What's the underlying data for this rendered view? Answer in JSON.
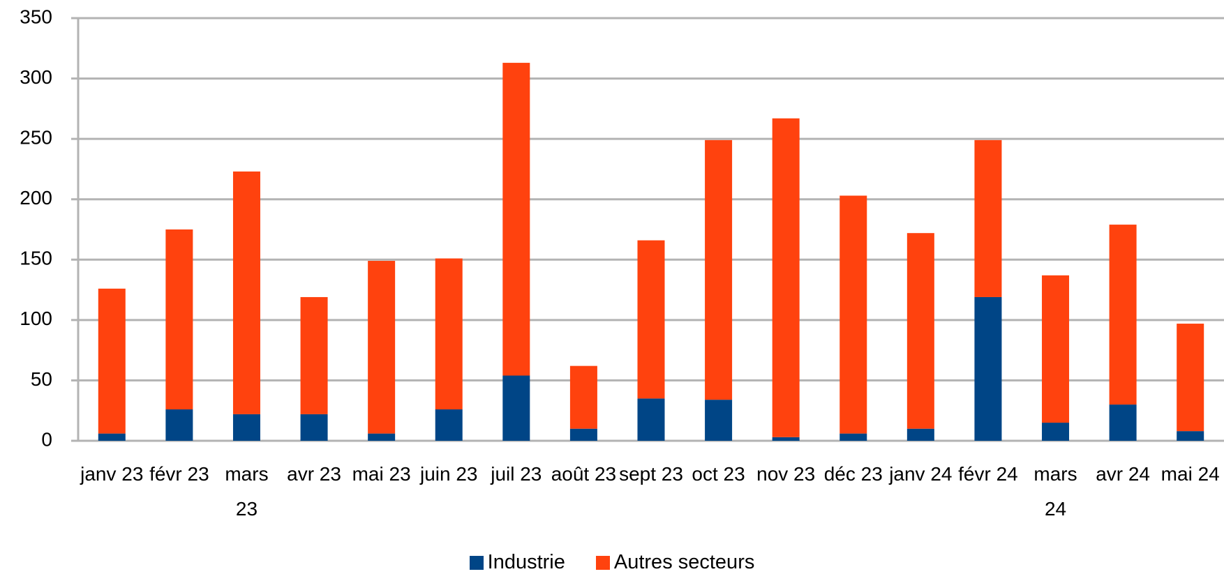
{
  "chart_data": {
    "type": "stacked_bar",
    "categories": [
      "janv 23",
      "févr 23",
      "mars 23",
      "avr 23",
      "mai 23",
      "juin 23",
      "juil 23",
      "août 23",
      "sept 23",
      "oct 23",
      "nov 23",
      "déc 23",
      "janv 24",
      "févr 24",
      "mars 24",
      "avr 24",
      "mai 24"
    ],
    "series": [
      {
        "name": "Industrie",
        "color": "#004586",
        "values": [
          6,
          26,
          22,
          22,
          6,
          26,
          54,
          10,
          35,
          34,
          3,
          6,
          10,
          119,
          15,
          30,
          8
        ]
      },
      {
        "name": "Autres secteurs",
        "color": "#ff420e",
        "values": [
          120,
          149,
          201,
          97,
          143,
          125,
          259,
          52,
          131,
          215,
          264,
          197,
          162,
          130,
          122,
          149,
          89
        ]
      }
    ],
    "ylim": [
      0,
      350
    ],
    "yticks": [
      0,
      50,
      100,
      150,
      200,
      250,
      300,
      350
    ],
    "grid": true,
    "legend": "bottom"
  }
}
